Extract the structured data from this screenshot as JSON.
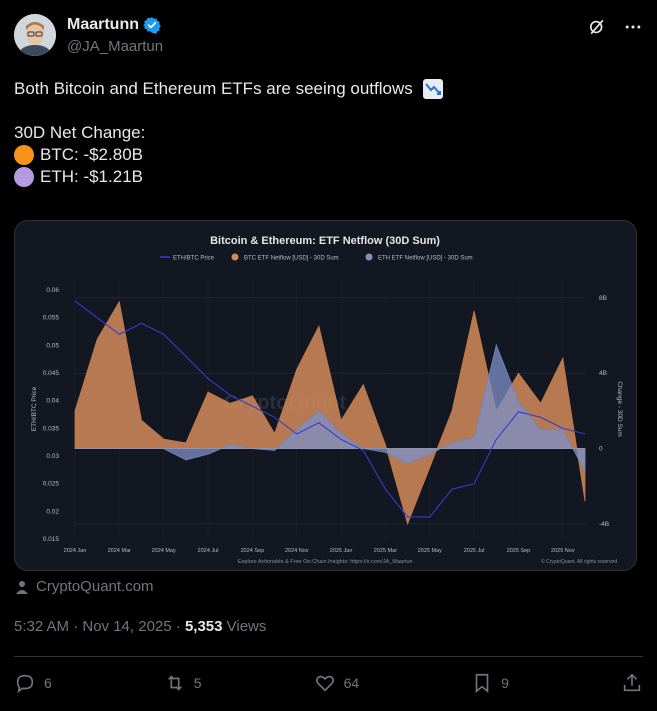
{
  "author": {
    "display_name": "Maartunn",
    "handle": "@JA_Maartun"
  },
  "tweet": {
    "line1": "Both Bitcoin and Ethereum ETFs are seeing outflows",
    "line2": "30D Net Change:",
    "btc": "BTC: -$2.80B",
    "eth": "ETH: -$1.21B"
  },
  "colors": {
    "btc_dot": "#f7931a",
    "eth_dot": "#b69ae0",
    "chart_bg": "#131722",
    "btc_area": "#d38b5a",
    "eth_area": "#7d90c8",
    "ratio_line": "#3a3ad0"
  },
  "chart_data": {
    "type": "area",
    "title": "Bitcoin & Ethereum: ETF Netflow (30D Sum)",
    "legend": [
      "ETH/BTC Price",
      "BTC ETF Netflow [USD] - 30D Sum",
      "ETH ETF Netflow [USD] - 30D Sum"
    ],
    "legend_position": "top",
    "watermark": "CryptoQuant",
    "ylabel_left": "ETH/BTC Price",
    "ylabel_right": "Change - 30D Sum",
    "yticks_left": [
      "0.06",
      "0.055",
      "0.05",
      "0.045",
      "0.04",
      "0.035",
      "0.03",
      "0.025",
      "0.02",
      "0.015"
    ],
    "yticks_right": [
      "8B",
      "4B",
      "0",
      "-4B"
    ],
    "xticks": [
      "2024 Jan",
      "2024 Mar",
      "2024 May",
      "2024 Jul",
      "2024 Sep",
      "2024 Nov",
      "2025 Jan",
      "2025 Mar",
      "2025 May",
      "2025 Jul",
      "2025 Sep",
      "2025 Nov"
    ],
    "ylim_right": [
      -4.8,
      9
    ],
    "ylim_left": [
      0.015,
      0.062
    ],
    "x_month_index": [
      0,
      1,
      2,
      3,
      4,
      5,
      6,
      7,
      8,
      9,
      10,
      11,
      12,
      13,
      14,
      15,
      16,
      17,
      18,
      19,
      20,
      21,
      22,
      23
    ],
    "btc_netflow_b": [
      2.0,
      5.8,
      7.8,
      1.5,
      0.5,
      0.3,
      3.0,
      2.4,
      2.8,
      0.8,
      4.2,
      6.5,
      1.5,
      3.4,
      0.2,
      -4.0,
      -1.0,
      2.0,
      7.3,
      2.0,
      4.0,
      2.4,
      4.8,
      -2.8
    ],
    "eth_netflow_b": [
      0.0,
      0.0,
      0.0,
      0.0,
      0.0,
      -0.6,
      -0.3,
      0.2,
      0.0,
      -0.1,
      1.0,
      2.0,
      0.8,
      0.0,
      -0.2,
      -0.8,
      -0.3,
      0.3,
      0.6,
      5.5,
      2.5,
      1.0,
      1.0,
      -1.21
    ],
    "eth_btc_price": [
      0.058,
      0.055,
      0.052,
      0.054,
      0.052,
      0.048,
      0.044,
      0.041,
      0.039,
      0.037,
      0.034,
      0.036,
      0.033,
      0.031,
      0.024,
      0.019,
      0.019,
      0.024,
      0.025,
      0.033,
      0.038,
      0.037,
      0.035,
      0.034
    ],
    "footer_note": "Explore Actionable & Free On-Chain Insights: https://x.com/JA_Maartun",
    "footer_copyright": "© CryptoQuant. All rights reserved"
  },
  "source_label": "CryptoQuant.com",
  "meta": {
    "time": "5:32 AM · Nov 14, 2025 · ",
    "views_count": "5,353",
    "views_label": " Views"
  },
  "stats": {
    "replies": "6",
    "reposts": "5",
    "likes": "64",
    "bookmarks": "9"
  },
  "icons": [
    "verified-badge-icon",
    "grok-icon",
    "more-icon",
    "chart-decreasing-icon",
    "person-icon",
    "reply-icon",
    "repost-icon",
    "like-icon",
    "bookmark-icon",
    "share-icon"
  ]
}
